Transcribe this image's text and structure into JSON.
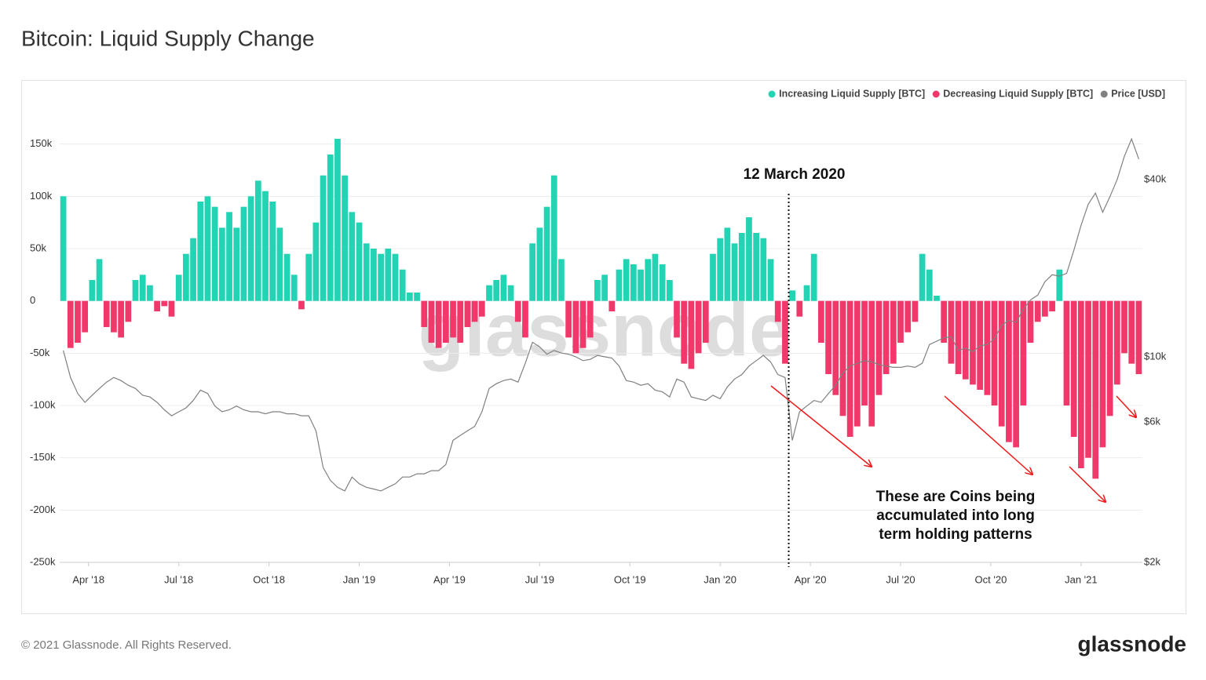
{
  "chart_data": {
    "type": "bar",
    "title": "Bitcoin: Liquid Supply Change",
    "x": [
      2018.18,
      2018.2,
      2018.22,
      2018.24,
      2018.26,
      2018.28,
      2018.3,
      2018.32,
      2018.34,
      2018.36,
      2018.38,
      2018.4,
      2018.42,
      2018.44,
      2018.46,
      2018.48,
      2018.5,
      2018.52,
      2018.54,
      2018.56,
      2018.58,
      2018.6,
      2018.62,
      2018.64,
      2018.66,
      2018.68,
      2018.7,
      2018.72,
      2018.74,
      2018.76,
      2018.78,
      2018.8,
      2018.82,
      2018.84,
      2018.86,
      2018.88,
      2018.9,
      2018.92,
      2018.94,
      2018.96,
      2018.98,
      2019.0,
      2019.02,
      2019.04,
      2019.06,
      2019.08,
      2019.1,
      2019.12,
      2019.14,
      2019.16,
      2019.18,
      2019.2,
      2019.22,
      2019.24,
      2019.26,
      2019.28,
      2019.3,
      2019.32,
      2019.34,
      2019.36,
      2019.38,
      2019.4,
      2019.42,
      2019.44,
      2019.46,
      2019.48,
      2019.5,
      2019.52,
      2019.54,
      2019.56,
      2019.58,
      2019.6,
      2019.62,
      2019.64,
      2019.66,
      2019.68,
      2019.7,
      2019.72,
      2019.74,
      2019.76,
      2019.78,
      2019.8,
      2019.82,
      2019.84,
      2019.86,
      2019.88,
      2019.9,
      2019.92,
      2019.94,
      2019.96,
      2019.98,
      2020.0,
      2020.02,
      2020.04,
      2020.06,
      2020.08,
      2020.1,
      2020.12,
      2020.14,
      2020.16,
      2020.18,
      2020.2,
      2020.22,
      2020.24,
      2020.26,
      2020.28,
      2020.3,
      2020.32,
      2020.34,
      2020.36,
      2020.38,
      2020.4,
      2020.42,
      2020.44,
      2020.46,
      2020.48,
      2020.5,
      2020.52,
      2020.54,
      2020.56,
      2020.58,
      2020.6,
      2020.62,
      2020.64,
      2020.66,
      2020.68,
      2020.7,
      2020.72,
      2020.74,
      2020.76,
      2020.78,
      2020.8,
      2020.82,
      2020.84,
      2020.86,
      2020.88,
      2020.9,
      2020.92,
      2020.94,
      2020.96,
      2020.98,
      2021.0,
      2021.02,
      2021.04,
      2021.06,
      2021.08,
      2021.1,
      2021.12,
      2021.14,
      2021.16
    ],
    "xlim": [
      2018.17,
      2021.17
    ],
    "xticks": [
      {
        "value": 2018.25,
        "label": "Apr '18"
      },
      {
        "value": 2018.5,
        "label": "Jul '18"
      },
      {
        "value": 2018.75,
        "label": "Oct '18"
      },
      {
        "value": 2019.0,
        "label": "Jan '19"
      },
      {
        "value": 2019.25,
        "label": "Apr '19"
      },
      {
        "value": 2019.5,
        "label": "Jul '19"
      },
      {
        "value": 2019.75,
        "label": "Oct '19"
      },
      {
        "value": 2020.0,
        "label": "Jan '20"
      },
      {
        "value": 2020.25,
        "label": "Apr '20"
      },
      {
        "value": 2020.5,
        "label": "Jul '20"
      },
      {
        "value": 2020.75,
        "label": "Oct '20"
      },
      {
        "value": 2021.0,
        "label": "Jan '21"
      }
    ],
    "ylim": [
      -250000,
      200000
    ],
    "yticks": [
      {
        "value": -250000,
        "label": "-250k"
      },
      {
        "value": -200000,
        "label": "-200k"
      },
      {
        "value": -150000,
        "label": "-150k"
      },
      {
        "value": -100000,
        "label": "-100k"
      },
      {
        "value": -50000,
        "label": "-50k"
      },
      0,
      {
        "value": 50000,
        "label": "50k"
      },
      {
        "value": 100000,
        "label": "100k"
      },
      {
        "value": 150000,
        "label": "150k"
      }
    ],
    "y2lim": [
      2000,
      79600
    ],
    "y2_scale": "log",
    "y2ticks": [
      {
        "value": 2000,
        "label": "$2k"
      },
      {
        "value": 6000,
        "label": "$6k"
      },
      {
        "value": 10000,
        "label": "$10k"
      },
      {
        "value": 40000,
        "label": "$40k"
      }
    ],
    "grid": true,
    "legend": "top-right",
    "series": [
      {
        "name": "Increasing Liquid Supply [BTC]",
        "color": "#22d3b4",
        "values": [
          100000,
          null,
          null,
          null,
          20000,
          40000,
          null,
          null,
          null,
          null,
          20000,
          25000,
          15000,
          null,
          null,
          null,
          25000,
          45000,
          60000,
          95000,
          100000,
          90000,
          70000,
          85000,
          70000,
          90000,
          100000,
          115000,
          105000,
          95000,
          70000,
          45000,
          25000,
          null,
          45000,
          75000,
          120000,
          140000,
          155000,
          120000,
          85000,
          75000,
          55000,
          50000,
          45000,
          50000,
          45000,
          30000,
          8000,
          8000,
          null,
          null,
          null,
          null,
          null,
          null,
          null,
          null,
          null,
          15000,
          20000,
          25000,
          15000,
          null,
          null,
          55000,
          70000,
          90000,
          120000,
          40000,
          null,
          null,
          null,
          null,
          20000,
          25000,
          null,
          30000,
          40000,
          35000,
          30000,
          40000,
          45000,
          35000,
          20000,
          null,
          null,
          null,
          null,
          null,
          45000,
          60000,
          70000,
          55000,
          65000,
          80000,
          65000,
          60000,
          40000,
          null,
          null,
          10000,
          null,
          15000,
          45000,
          null,
          null,
          null,
          null,
          null,
          null,
          null,
          null,
          null,
          null,
          null,
          null,
          null,
          null,
          45000,
          30000,
          5000,
          null,
          null,
          null,
          null,
          null,
          null,
          null,
          null,
          null,
          null,
          null,
          null,
          null,
          null,
          null,
          null,
          30000,
          null,
          null,
          null,
          null,
          null,
          null,
          null,
          null,
          null,
          null,
          null
        ]
      },
      {
        "name": "Decreasing Liquid Supply [BTC]",
        "color": "#f0386b",
        "values": [
          null,
          -45000,
          -40000,
          -30000,
          null,
          null,
          -25000,
          -30000,
          -35000,
          -20000,
          null,
          null,
          null,
          -10000,
          -5000,
          -15000,
          null,
          null,
          null,
          null,
          null,
          null,
          null,
          null,
          null,
          null,
          null,
          null,
          null,
          null,
          null,
          null,
          null,
          -8000,
          null,
          null,
          null,
          null,
          null,
          null,
          null,
          null,
          null,
          null,
          null,
          null,
          null,
          null,
          null,
          null,
          -25000,
          -40000,
          -45000,
          -40000,
          -35000,
          -40000,
          -25000,
          -20000,
          -15000,
          null,
          null,
          null,
          null,
          -20000,
          -35000,
          null,
          null,
          null,
          null,
          null,
          -35000,
          -50000,
          -45000,
          -35000,
          null,
          null,
          -10000,
          null,
          null,
          null,
          null,
          null,
          null,
          null,
          null,
          -35000,
          -60000,
          -65000,
          -50000,
          -40000,
          null,
          null,
          null,
          null,
          null,
          null,
          null,
          null,
          null,
          -20000,
          -60000,
          null,
          -15000,
          null,
          null,
          -40000,
          -70000,
          -90000,
          -110000,
          -130000,
          -120000,
          -100000,
          -120000,
          -90000,
          -70000,
          -60000,
          -40000,
          -30000,
          -20000,
          null,
          null,
          null,
          -40000,
          -60000,
          -70000,
          -75000,
          -80000,
          -85000,
          -90000,
          -100000,
          -120000,
          -135000,
          -140000,
          -100000,
          -40000,
          -20000,
          -15000,
          -10000,
          null,
          -100000,
          -130000,
          -160000,
          -150000,
          -170000,
          -140000,
          -110000,
          -80000,
          -50000,
          -60000,
          -70000
        ]
      },
      {
        "name": "Price [USD]",
        "color": "#808080",
        "type": "line",
        "axis": "y2",
        "values": [
          10500,
          8500,
          7500,
          7000,
          7400,
          7800,
          8200,
          8500,
          8300,
          8000,
          7800,
          7400,
          7300,
          7000,
          6600,
          6300,
          6500,
          6700,
          7100,
          7700,
          7500,
          6800,
          6500,
          6600,
          6800,
          6600,
          6500,
          6500,
          6400,
          6500,
          6500,
          6400,
          6400,
          6300,
          6300,
          5600,
          4200,
          3800,
          3600,
          3500,
          3900,
          3700,
          3600,
          3550,
          3500,
          3600,
          3700,
          3900,
          3900,
          4000,
          4000,
          4100,
          4100,
          4300,
          5200,
          5400,
          5600,
          5800,
          6500,
          7800,
          8100,
          8300,
          8400,
          8200,
          9500,
          11200,
          10800,
          10200,
          10500,
          10300,
          10200,
          10000,
          9700,
          9800,
          10100,
          10000,
          9900,
          9300,
          8300,
          8200,
          8000,
          8100,
          7700,
          7600,
          7300,
          8400,
          8200,
          7300,
          7200,
          7100,
          7400,
          7200,
          7900,
          8400,
          8700,
          9300,
          9700,
          10100,
          9600,
          8700,
          8500,
          5200,
          6500,
          6800,
          7100,
          7000,
          7500,
          8000,
          8800,
          9300,
          9500,
          9700,
          9600,
          9400,
          9300,
          9200,
          9200,
          9300,
          9200,
          9500,
          11000,
          11300,
          11600,
          11700,
          10500,
          10700,
          10400,
          10900,
          11000,
          11500,
          12800,
          13300,
          13100,
          14500,
          15600,
          16200,
          18000,
          19000,
          18800,
          19200,
          23000,
          28000,
          33000,
          36000,
          31000,
          35000,
          40000,
          48000,
          55000,
          47000
        ]
      }
    ],
    "annotations": [
      {
        "text": "12 March 2020",
        "x": 2020.19
      },
      {
        "lines": [
          "These are Coins being",
          "accumulated into long",
          "term holding patterns"
        ]
      }
    ],
    "watermark": "glassnode"
  },
  "footer": {
    "copyright": "© 2021 Glassnode. All Rights Reserved.",
    "logo": "glassnode"
  }
}
